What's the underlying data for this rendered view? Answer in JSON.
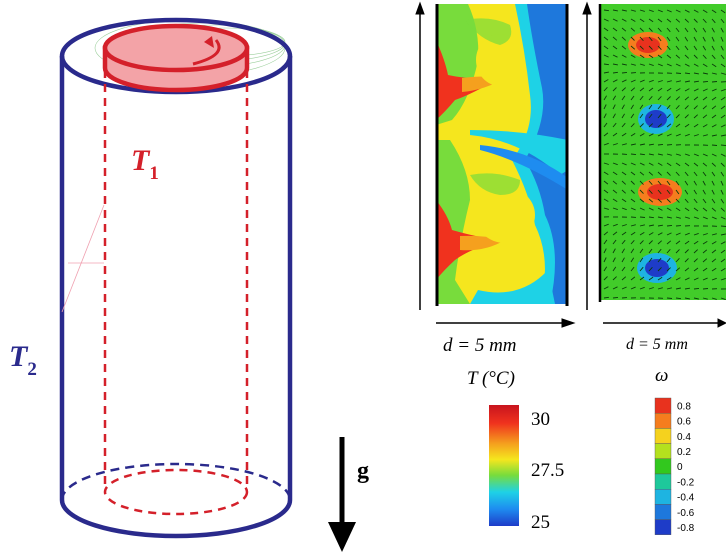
{
  "cylinder": {
    "inner_label": "T",
    "inner_sub": "1",
    "outer_label": "T",
    "outer_sub": "2",
    "colors": {
      "outer": "#2a2a8c",
      "inner": "#d4202a",
      "inner_fill": "#f3a3a7"
    }
  },
  "gravity": {
    "label": "g"
  },
  "panels": {
    "temperature": {
      "scale_label": "d = 5 mm"
    },
    "vorticity": {
      "scale_label": "d = 5 mm"
    }
  },
  "colorbars": {
    "temperature": {
      "title": "T (°C)",
      "ticks": [
        "30",
        "27.5",
        "25"
      ]
    },
    "vorticity": {
      "title": "ω",
      "ticks": [
        "0.8",
        "0.6",
        "0.4",
        "0.2",
        "0",
        "-0.2",
        "-0.4",
        "-0.6",
        "-0.8"
      ],
      "colors": [
        "#e8321e",
        "#f57d1e",
        "#f5d21e",
        "#b4e11e",
        "#32c81e",
        "#1ec89b",
        "#1eb4e1",
        "#1e78dc",
        "#1e3cc8"
      ]
    }
  }
}
